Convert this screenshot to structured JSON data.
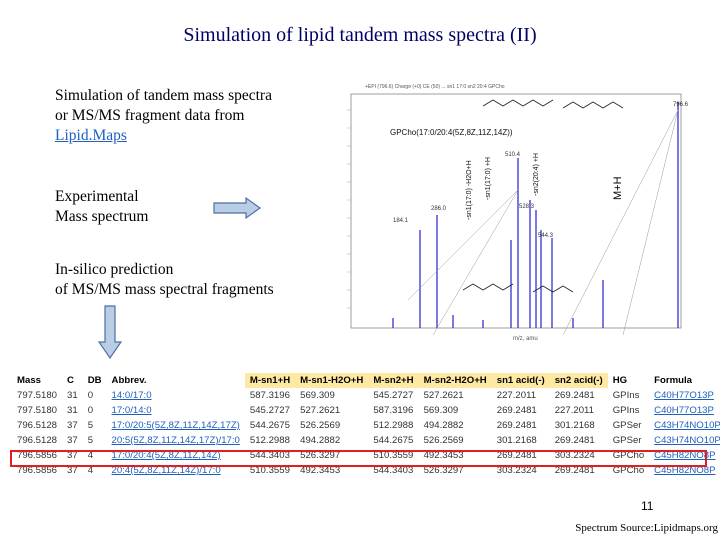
{
  "title": "Simulation of lipid tandem mass spectra (II)",
  "intro": {
    "line1": "Simulation of tandem mass spectra",
    "line2": "or MS/MS fragment data from",
    "link": "Lipid.Maps"
  },
  "experimental": {
    "line1": "Experimental",
    "line2": "Mass spectrum"
  },
  "insilico": {
    "line1": "In-silico prediction",
    "line2": "of MS/MS mass spectral fragments"
  },
  "spectrum": {
    "molecule_label": "GPCho(17:0/20:4(5Z,8Z,11Z,14Z))",
    "mh_label": "M+H",
    "peak_labels": [
      "796.6",
      "510.4",
      "528.3",
      "544.3",
      "184.1",
      "286.0"
    ],
    "fragment_labels": [
      "-sn1(17:0) -H2O+H",
      "-sn1(17:0) +H",
      "-sn2(20:4) +H"
    ],
    "xaxis_label": "m/z, amu",
    "title_strip": "+EPI (796.6) Charge (+0) CE (50) ... sn1 17:0 sn2 20:4 GPCho"
  },
  "table": {
    "headers": [
      "Mass",
      "C",
      "DB",
      "Abbrev.",
      "M-sn1+H",
      "M-sn1-H2O+H",
      "M-sn2+H",
      "M-sn2-H2O+H",
      "sn1 acid(-)",
      "sn2 acid(-)",
      "HG",
      "Formula"
    ],
    "rows": [
      [
        "797.5180",
        "31",
        "0",
        "14:0/17:0",
        "587.3196",
        "569.309",
        "545.2727",
        "527.2621",
        "227.2011",
        "269.2481",
        "GPIns",
        "C40H77O13P"
      ],
      [
        "797.5180",
        "31",
        "0",
        "17:0/14:0",
        "545.2727",
        "527.2621",
        "587.3196",
        "569.309",
        "269.2481",
        "227.2011",
        "GPIns",
        "C40H77O13P"
      ],
      [
        "796.5128",
        "37",
        "5",
        "17:0/20:5(5Z,8Z,11Z,14Z,17Z)",
        "544.2675",
        "526.2569",
        "512.2988",
        "494.2882",
        "269.2481",
        "301.2168",
        "GPSer",
        "C43H74NO10P"
      ],
      [
        "796.5128",
        "37",
        "5",
        "20:5(5Z,8Z,11Z,14Z,17Z)/17:0",
        "512.2988",
        "494.2882",
        "544.2675",
        "526.2569",
        "301.2168",
        "269.2481",
        "GPSer",
        "C43H74NO10P"
      ],
      [
        "796.5856",
        "37",
        "4",
        "17:0/20:4(5Z,8Z,11Z,14Z)",
        "544.3403",
        "526.3297",
        "510.3559",
        "492.3453",
        "269.2481",
        "303.2324",
        "GPCho",
        "C45H82NO8P"
      ],
      [
        "796.5856",
        "37",
        "4",
        "20:4(5Z,8Z,11Z,14Z)/17:0",
        "510.3559",
        "492.3453",
        "544.3403",
        "526.3297",
        "303.2324",
        "269.2481",
        "GPCho",
        "C45H82NO8P"
      ]
    ]
  },
  "page_number": "11",
  "source": "Spectrum Source:Lipidmaps.org"
}
